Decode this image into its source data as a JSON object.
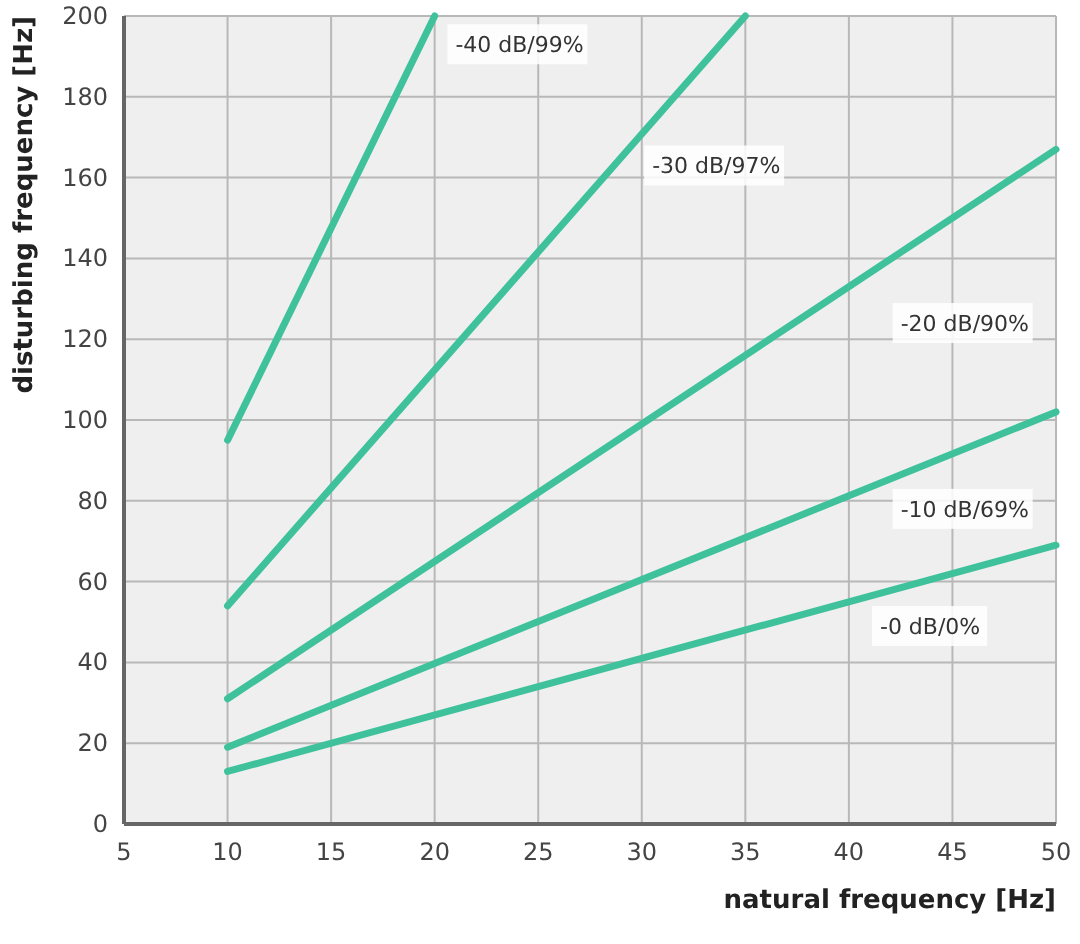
{
  "chart_data": {
    "type": "line",
    "xlabel": "natural frequency [Hz]",
    "ylabel": "disturbing frequency [Hz]",
    "xlim": [
      5,
      50
    ],
    "xticks": [
      5,
      10,
      15,
      20,
      25,
      30,
      35,
      40,
      45,
      50
    ],
    "ylim": [
      0,
      200
    ],
    "yticks": [
      0,
      20,
      40,
      60,
      80,
      100,
      120,
      140,
      160,
      180,
      200
    ],
    "grid": true,
    "marker": "none",
    "line_style": "solid",
    "series": [
      {
        "name": "-40 dB/99%",
        "color": "#3fc29b",
        "x": [
          10,
          20
        ],
        "values": [
          95,
          200
        ]
      },
      {
        "name": "-30 dB/97%",
        "color": "#3fc29b",
        "x": [
          10,
          35
        ],
        "values": [
          54,
          200
        ]
      },
      {
        "name": "-20 dB/90%",
        "color": "#3fc29b",
        "x": [
          10,
          50
        ],
        "values": [
          31,
          167
        ]
      },
      {
        "name": "-10 dB/69%",
        "color": "#3fc29b",
        "x": [
          10,
          50
        ],
        "values": [
          19,
          102
        ]
      },
      {
        "name": "-0 dB/0%",
        "color": "#3fc29b",
        "x": [
          10,
          50
        ],
        "values": [
          13,
          69
        ]
      }
    ]
  }
}
